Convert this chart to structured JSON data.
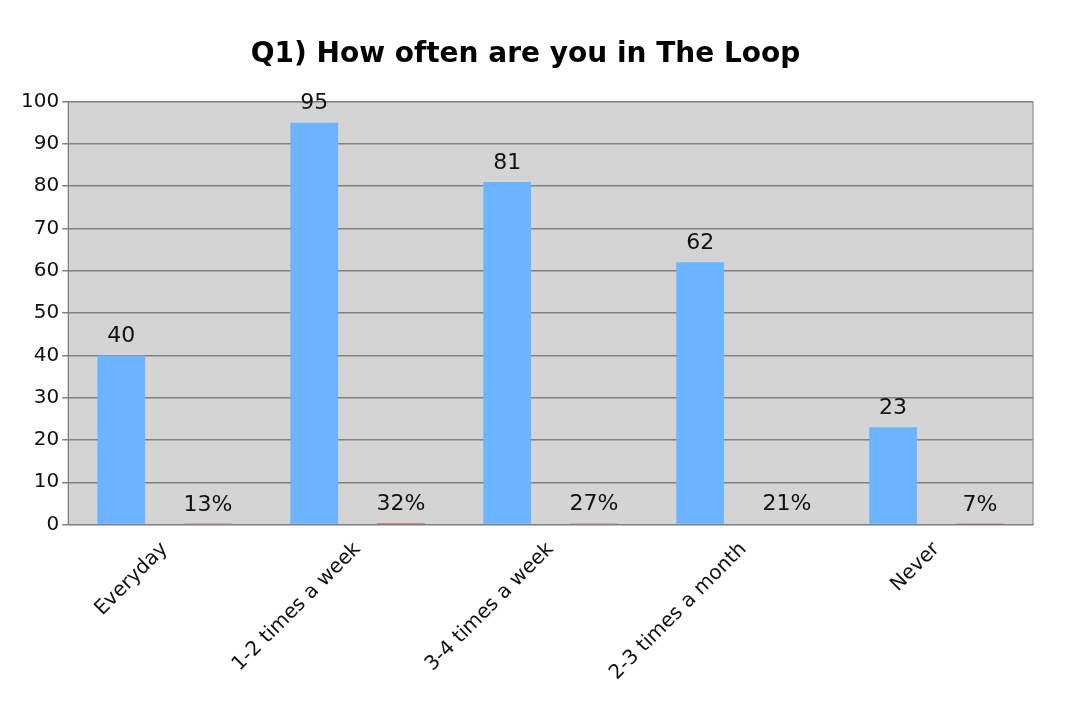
{
  "chart_data": {
    "type": "bar",
    "title": "Q1) How often are you in The Loop",
    "categories": [
      "Everyday",
      "1-2 times a week",
      "3-4 times a week",
      "2-3 times a month",
      "Never"
    ],
    "series": [
      {
        "color": "#6cb4ff",
        "values": [
          40,
          95,
          81,
          62,
          23
        ]
      },
      {
        "color": "#cc3333",
        "values": [
          0.13,
          0.32,
          0.27,
          0.21,
          0.07
        ],
        "value_labels": [
          "13%",
          "32%",
          "27%",
          "21%",
          "7%"
        ]
      }
    ],
    "ylim": [
      0,
      100
    ],
    "yticks": [
      0,
      10,
      20,
      30,
      40,
      50,
      60,
      70,
      80,
      90,
      100
    ],
    "grid": "y",
    "data_labels": true,
    "legend": false
  }
}
